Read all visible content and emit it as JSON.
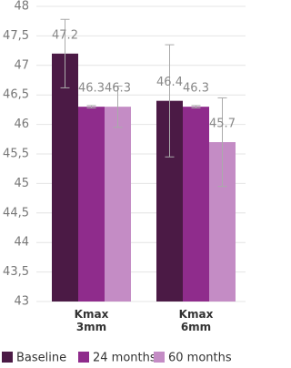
{
  "chart_data": {
    "type": "bar",
    "categories": [
      "Kmax 3mm",
      "Kmax 6mm"
    ],
    "series": [
      {
        "name": "Baseline",
        "color": "#4b1a45",
        "values": [
          47.2,
          46.4
        ],
        "errors": [
          0.58,
          0.95
        ]
      },
      {
        "name": "24 months",
        "color": "#8f2c8c",
        "values": [
          46.3,
          46.3
        ],
        "errors": [
          0.02,
          0.02
        ]
      },
      {
        "name": "60 months",
        "color": "#c48cc5",
        "values": [
          46.3,
          45.7
        ],
        "errors": [
          0.35,
          0.75
        ]
      }
    ],
    "ylim": [
      43,
      48
    ],
    "yticks": [
      43,
      {
        "value": 43.5,
        "label": "43,5"
      },
      44,
      {
        "value": 44.5,
        "label": "44,5"
      },
      45,
      {
        "value": 45.5,
        "label": "45,5"
      },
      46,
      {
        "value": 46.5,
        "label": "46,5"
      },
      47,
      {
        "value": 47.5,
        "label": "47,5"
      },
      48
    ],
    "grid": true
  }
}
